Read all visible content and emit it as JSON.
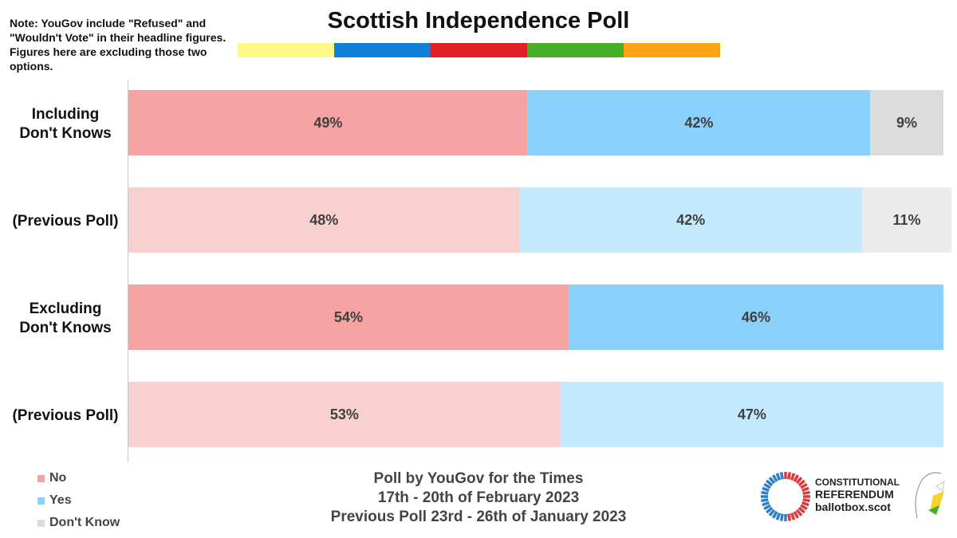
{
  "note": "Note: YouGov include \"Refused\" and \"Wouldn't Vote\" in their headline figures. Figures here are excluding those two options.",
  "title": "Scottish Independence Poll",
  "strip_colors": [
    "#FFF98A",
    "#0E7FD6",
    "#DF1F24",
    "#45B027",
    "#FDA515"
  ],
  "chart_data": {
    "type": "bar",
    "orientation": "horizontal-stacked-100",
    "categories": [
      [
        "Including",
        "Don't Knows"
      ],
      [
        "(Previous Poll)"
      ],
      [
        "Excluding",
        "Don't Knows"
      ],
      [
        "(Previous Poll)"
      ]
    ],
    "series": [
      {
        "name": "No",
        "values": [
          49,
          48,
          54,
          53
        ],
        "labels": [
          "49%",
          "48%",
          "54%",
          "53%"
        ],
        "colors": [
          "#F4A3A2",
          "#F9D0D0",
          "#F4A3A2",
          "#F9D0D0"
        ]
      },
      {
        "name": "Yes",
        "values": [
          42,
          42,
          46,
          47
        ],
        "labels": [
          "42%",
          "42%",
          "46%",
          "47%"
        ],
        "colors": [
          "#89D0FB",
          "#C4E8FC",
          "#89D0FB",
          "#C4E8FC"
        ]
      },
      {
        "name": "Don't Know",
        "values": [
          9,
          11,
          0,
          0
        ],
        "labels": [
          "9%",
          "11%",
          "",
          ""
        ],
        "colors": [
          "#DCDCDC",
          "#EBEBEB",
          "#DCDCDC",
          "#EBEBEB"
        ]
      }
    ],
    "xlim": [
      0,
      100
    ],
    "legend_position": "bottom-left"
  },
  "legend": [
    {
      "label": "No",
      "color": "#F4A3A2"
    },
    {
      "label": "Yes",
      "color": "#89D0FB"
    },
    {
      "label": "Don't Know",
      "color": "#DCDCDC"
    }
  ],
  "footer": {
    "line1": "Poll by YouGov for the Times",
    "line2": "17th - 20th of February 2023",
    "line3": "Previous Poll 23rd - 26th of January 2023"
  },
  "logo": {
    "line1": "CONSTITUTIONAL",
    "line2": "REFERENDUM",
    "line3": "ballotbox.scot",
    "ring_colors": [
      "#D93A3A",
      "#2C7FC4"
    ]
  }
}
